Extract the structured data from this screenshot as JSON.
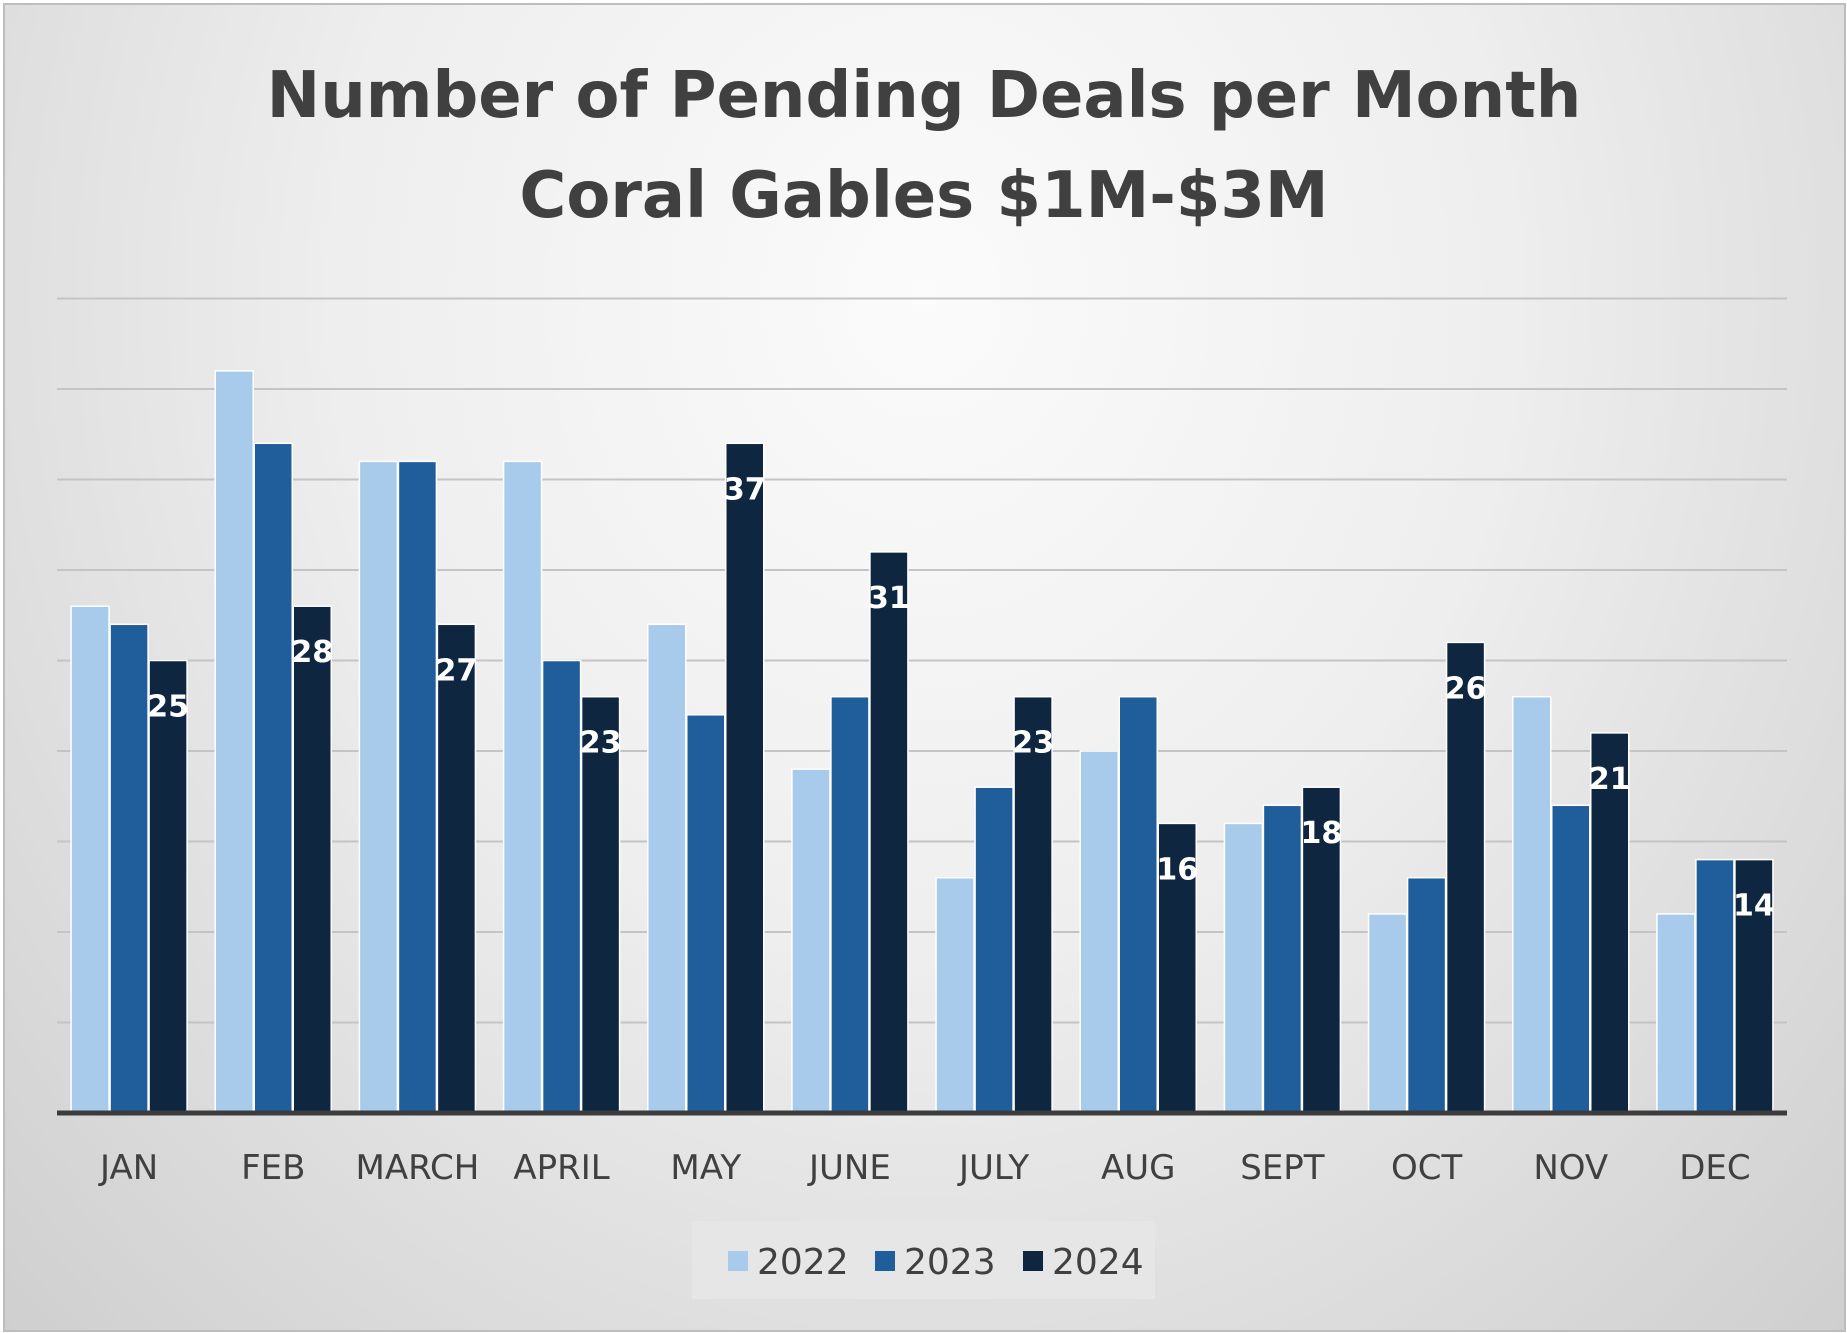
{
  "chart_data": {
    "type": "bar",
    "title": "Number of Pending Deals per Month",
    "subtitle": "Coral Gables $1M-$3M",
    "categories": [
      "JAN",
      "FEB",
      "MARCH",
      "APRIL",
      "MAY",
      "JUNE",
      "JULY",
      "AUG",
      "SEPT",
      "OCT",
      "NOV",
      "DEC"
    ],
    "series": [
      {
        "name": "2022",
        "color": "#a9cbeb",
        "values": [
          28,
          41,
          36,
          36,
          27,
          19,
          13,
          20,
          16,
          11,
          23,
          11
        ]
      },
      {
        "name": "2023",
        "color": "#205d9b",
        "values": [
          27,
          37,
          36,
          25,
          22,
          23,
          18,
          23,
          17,
          13,
          17,
          14
        ]
      },
      {
        "name": "2024",
        "color": "#0e2640",
        "values": [
          25,
          28,
          27,
          23,
          37,
          31,
          23,
          16,
          18,
          26,
          21,
          14
        ],
        "labels": [
          "25",
          "28",
          "27",
          "23",
          "37",
          "31",
          "23",
          "16",
          "18",
          "26",
          "21",
          "14"
        ]
      }
    ],
    "ylim": [
      0,
      45
    ],
    "gridlines": true,
    "legend_position": "bottom",
    "xlabel": "",
    "ylabel": ""
  }
}
